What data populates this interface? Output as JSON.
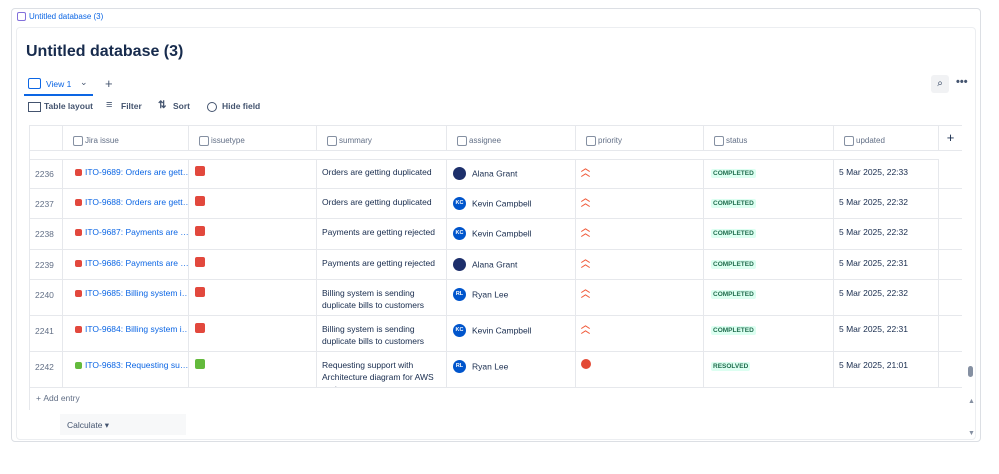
{
  "breadcrumb": "Untitled database (3)",
  "title": "Untitled database (3)",
  "tab": "View 1",
  "toolbar": [
    "Table layout",
    "Filter",
    "Sort",
    "Hide field"
  ],
  "columns": [
    "Jira issue",
    "issuetype",
    "summary",
    "assignee",
    "priority",
    "status",
    "updated"
  ],
  "rows": [
    {
      "num": "2236",
      "issue": "ITO-9689: Orders are gett…",
      "issuetype_color": "#e2483d",
      "summary": "Orders are getting duplicated",
      "assignee": {
        "name": "Alana Grant"
      },
      "priority_color": "#f15b3b",
      "status": "COMPLETED",
      "updated": "5 Mar 2025, 22:33"
    },
    {
      "num": "2237",
      "issue": "ITO-9688: Orders are gett…",
      "issuetype_color": "#e2483d",
      "summary": "Orders are getting duplicated",
      "assignee": {
        "initials": "KC",
        "name": "Kevin Campbell"
      },
      "priority_color": "#f15b3b",
      "status": "COMPLETED",
      "updated": "5 Mar 2025, 22:32"
    },
    {
      "num": "2238",
      "issue": "ITO-9687: Payments are …",
      "issuetype_color": "#e2483d",
      "summary": "Payments are getting rejected",
      "assignee": {
        "initials": "KC",
        "name": "Kevin Campbell"
      },
      "priority_color": "#f15b3b",
      "status": "COMPLETED",
      "updated": "5 Mar 2025, 22:32"
    },
    {
      "num": "2239",
      "issue": "ITO-9686: Payments are …",
      "issuetype_color": "#e2483d",
      "summary": "Payments are getting rejected",
      "assignee": {
        "name": "Alana Grant"
      },
      "priority_color": "#f15b3b",
      "status": "COMPLETED",
      "updated": "5 Mar 2025, 22:31"
    },
    {
      "num": "2240",
      "issue": "ITO-9685: Billing system i…",
      "issuetype_color": "#e2483d",
      "summary": "Billing system is sending duplicate bills to customers",
      "assignee": {
        "initials": "RL",
        "name": "Ryan Lee"
      },
      "priority_color": "#f15b3b",
      "status": "COMPLETED",
      "updated": "5 Mar 2025, 22:32"
    },
    {
      "num": "2241",
      "issue": "ITO-9684: Billing system i…",
      "issuetype_color": "#e2483d",
      "summary": "Billing system is sending duplicate bills to customers",
      "assignee": {
        "initials": "KC",
        "name": "Kevin Campbell"
      },
      "priority_color": "#f15b3b",
      "status": "COMPLETED",
      "updated": "5 Mar 2025, 22:31"
    },
    {
      "num": "2242",
      "issue": "ITO-9683: Requesting su…",
      "issuetype_color": "#63ba3c",
      "summary": "Requesting support with Architecture diagram for AWS system",
      "assignee": {
        "initials": "RL",
        "name": "Ryan Lee"
      },
      "priority_color": "#e34935",
      "status": "RESOLVED",
      "updated": "5 Mar 2025, 21:01"
    }
  ],
  "add_entry": "Add entry",
  "calculate": "Calculate"
}
